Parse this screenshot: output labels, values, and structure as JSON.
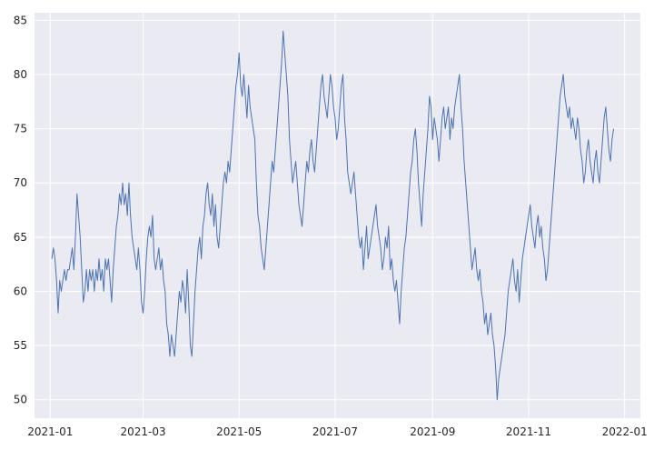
{
  "chart_data": {
    "type": "line",
    "title": "",
    "xlabel": "",
    "ylabel": "",
    "x_start": "2021-01-02",
    "x_end": "2021-12-31",
    "xlim": [
      "2020-12-22",
      "2022-01-11"
    ],
    "ylim": [
      48.3,
      85.7
    ],
    "grid": true,
    "xticks": [
      {
        "date": "2021-01-01",
        "label": "2021-01"
      },
      {
        "date": "2021-03-01",
        "label": "2021-03"
      },
      {
        "date": "2021-05-01",
        "label": "2021-05"
      },
      {
        "date": "2021-07-01",
        "label": "2021-07"
      },
      {
        "date": "2021-09-01",
        "label": "2021-09"
      },
      {
        "date": "2021-11-01",
        "label": "2021-11"
      },
      {
        "date": "2022-01-01",
        "label": "2022-01"
      }
    ],
    "yticks": [
      {
        "value": 50,
        "label": "50"
      },
      {
        "value": 55,
        "label": "55"
      },
      {
        "value": 60,
        "label": "60"
      },
      {
        "value": 65,
        "label": "65"
      },
      {
        "value": 70,
        "label": "70"
      },
      {
        "value": 75,
        "label": "75"
      },
      {
        "value": 80,
        "label": "80"
      },
      {
        "value": 85,
        "label": "85"
      }
    ],
    "series": [
      {
        "color": "#4c72b0",
        "values": [
          63,
          64,
          63,
          61,
          58,
          61,
          60,
          61,
          62,
          61,
          62,
          62,
          63,
          64,
          62,
          65,
          69,
          67,
          65,
          62,
          59,
          60,
          62,
          60,
          62,
          61,
          62,
          60,
          62,
          61,
          63,
          61,
          62,
          60,
          63,
          62,
          63,
          61,
          59,
          62,
          64,
          66,
          67,
          69,
          68,
          70,
          68,
          69,
          67,
          70,
          67,
          65,
          64,
          63,
          62,
          64,
          62,
          59,
          58,
          60,
          63,
          65,
          66,
          65,
          67,
          63,
          62,
          63,
          64,
          62,
          63,
          61,
          60,
          57,
          56,
          54,
          56,
          55,
          54,
          56,
          58,
          60,
          59,
          61,
          60,
          58,
          62,
          59,
          55,
          54,
          57,
          60,
          62,
          64,
          65,
          63,
          66,
          67,
          69,
          70,
          68,
          67,
          69,
          66,
          68,
          65,
          64,
          66,
          68,
          70,
          71,
          70,
          72,
          71,
          73,
          75,
          77,
          79,
          80,
          82,
          79,
          78,
          80,
          78,
          76,
          79,
          77,
          76,
          75,
          74,
          70,
          67,
          66,
          64,
          63,
          62,
          64,
          66,
          68,
          70,
          72,
          71,
          73,
          75,
          77,
          79,
          81,
          84,
          82,
          80,
          78,
          74,
          72,
          70,
          71,
          72,
          70,
          68,
          67,
          66,
          68,
          70,
          72,
          71,
          73,
          74,
          72,
          71,
          73,
          75,
          77,
          79,
          80,
          78,
          77,
          76,
          78,
          80,
          79,
          77,
          76,
          74,
          75,
          77,
          79,
          80,
          76,
          74,
          71,
          70,
          69,
          70,
          71,
          69,
          67,
          65,
          64,
          65,
          62,
          64,
          66,
          63,
          64,
          65,
          66,
          67,
          68,
          66,
          65,
          64,
          62,
          63,
          65,
          64,
          66,
          62,
          63,
          61,
          60,
          61,
          59,
          57,
          60,
          62,
          64,
          65,
          67,
          69,
          71,
          72,
          74,
          75,
          73,
          70,
          68,
          66,
          69,
          71,
          73,
          75,
          78,
          77,
          74,
          76,
          75,
          74,
          72,
          74,
          76,
          77,
          75,
          76,
          77,
          74,
          76,
          75,
          77,
          78,
          79,
          80,
          77,
          75,
          72,
          70,
          68,
          66,
          64,
          62,
          63,
          64,
          62,
          61,
          62,
          60,
          59,
          57,
          58,
          56,
          57,
          58,
          56,
          55,
          53,
          50,
          52,
          53,
          54,
          55,
          56,
          58,
          60,
          61,
          62,
          63,
          61,
          60,
          62,
          59,
          61,
          63,
          64,
          65,
          66,
          67,
          68,
          66,
          65,
          64,
          66,
          67,
          65,
          66,
          64,
          63,
          61,
          62,
          64,
          66,
          68,
          70,
          72,
          74,
          76,
          78,
          79,
          80,
          78,
          77,
          76,
          77,
          75,
          76,
          75,
          74,
          76,
          75,
          73,
          72,
          70,
          71,
          73,
          74,
          72,
          71,
          70,
          72,
          73,
          71,
          70,
          72,
          74,
          76,
          77,
          75,
          73,
          72,
          74,
          75
        ]
      }
    ]
  }
}
